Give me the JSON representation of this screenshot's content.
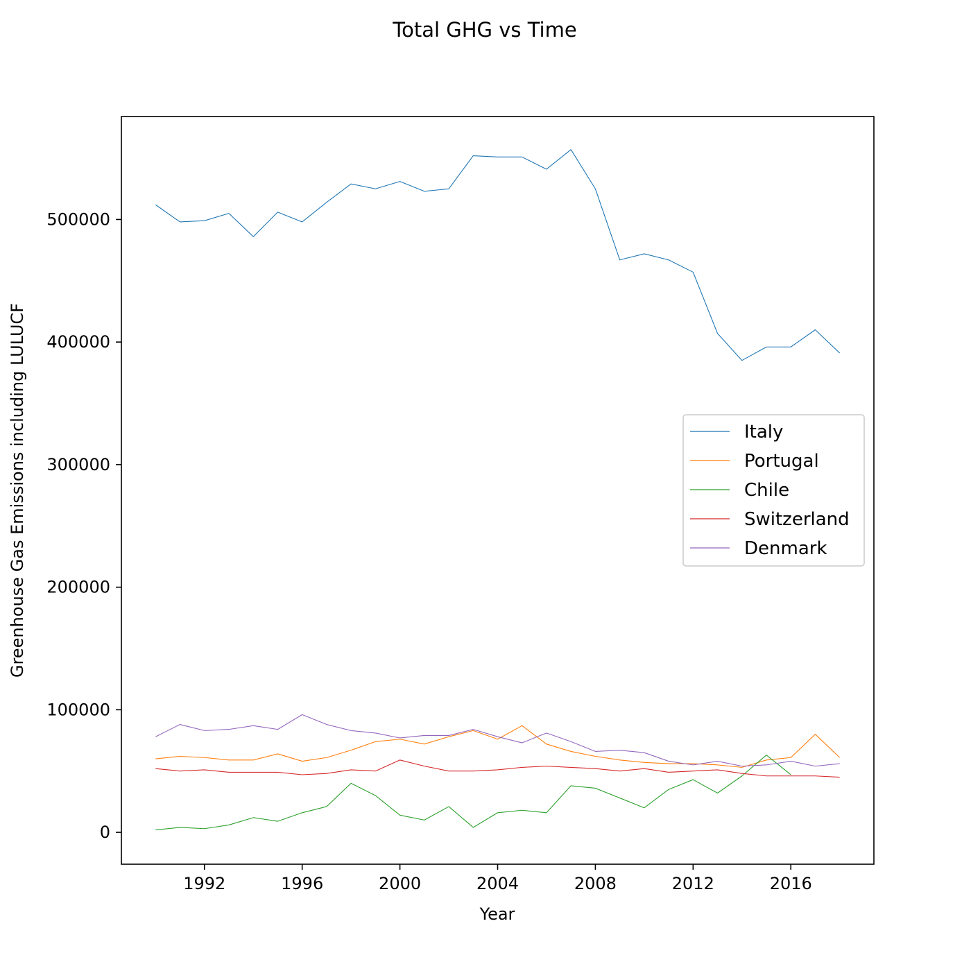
{
  "chart_data": {
    "type": "line",
    "title": "Total GHG vs Time",
    "xlabel": "Year",
    "ylabel": "Greenhouse Gas Emissions including LULUCF",
    "x": [
      1990,
      1991,
      1992,
      1993,
      1994,
      1995,
      1996,
      1997,
      1998,
      1999,
      2000,
      2001,
      2002,
      2003,
      2004,
      2005,
      2006,
      2007,
      2008,
      2009,
      2010,
      2011,
      2012,
      2013,
      2014,
      2015,
      2016,
      2017,
      2018
    ],
    "xlim": [
      1988.6,
      2019.4
    ],
    "ylim": [
      -26000,
      584000
    ],
    "xticks": [
      1992,
      1996,
      2000,
      2004,
      2008,
      2012,
      2016
    ],
    "yticks": [
      0,
      100000,
      200000,
      300000,
      400000,
      500000
    ],
    "grid": false,
    "legend_position": "center-right",
    "series": [
      {
        "name": "Italy",
        "color": "#1f77b4",
        "values": [
          512000,
          498000,
          499000,
          505000,
          486000,
          506000,
          498000,
          514000,
          529000,
          525000,
          531000,
          523000,
          525000,
          552000,
          551000,
          551000,
          541000,
          557000,
          525000,
          467000,
          472000,
          467000,
          457000,
          407000,
          385000,
          396000,
          396000,
          410000,
          391000
        ]
      },
      {
        "name": "Portugal",
        "color": "#ff7f0e",
        "values": [
          60000,
          62000,
          61000,
          59000,
          59000,
          64000,
          58000,
          61000,
          67000,
          74000,
          76000,
          72000,
          78000,
          83000,
          76000,
          87000,
          72000,
          66000,
          62000,
          59000,
          57000,
          56000,
          56000,
          55000,
          53000,
          59000,
          61000,
          80000,
          61000
        ]
      },
      {
        "name": "Chile",
        "color": "#2ca02c",
        "values": [
          2000,
          4000,
          3000,
          6000,
          12000,
          9000,
          16000,
          21000,
          40000,
          30000,
          14000,
          10000,
          21000,
          4000,
          16000,
          18000,
          16000,
          38000,
          36000,
          28000,
          20000,
          35000,
          43000,
          32000,
          46000,
          63000,
          47000,
          null,
          null
        ]
      },
      {
        "name": "Switzerland",
        "color": "#d62728",
        "values": [
          52000,
          50000,
          51000,
          49000,
          49000,
          49000,
          47000,
          48000,
          51000,
          50000,
          59000,
          54000,
          50000,
          50000,
          51000,
          53000,
          54000,
          53000,
          52000,
          50000,
          52000,
          49000,
          50000,
          51000,
          48000,
          46000,
          46000,
          46000,
          45000
        ]
      },
      {
        "name": "Denmark",
        "color": "#9467bd",
        "values": [
          78000,
          88000,
          83000,
          84000,
          87000,
          84000,
          96000,
          88000,
          83000,
          81000,
          77000,
          79000,
          79000,
          84000,
          78000,
          73000,
          81000,
          74000,
          66000,
          67000,
          65000,
          58000,
          55000,
          58000,
          54000,
          55000,
          58000,
          54000,
          56000
        ]
      }
    ]
  }
}
